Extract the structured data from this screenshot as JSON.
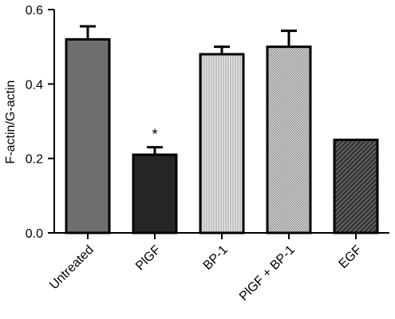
{
  "chart_data": {
    "type": "bar",
    "categories": [
      "Untreated",
      "PlGF",
      "BP-1",
      "PlGF + BP-1",
      "EGF"
    ],
    "values": [
      0.52,
      0.21,
      0.48,
      0.5,
      0.25
    ],
    "error_upper": [
      0.555,
      0.23,
      0.5,
      0.543,
      0.25
    ],
    "ylabel": "F-actin/G-actin",
    "xlabel": "",
    "ylim": [
      0,
      0.6
    ],
    "yticks": [
      0.0,
      0.2,
      0.4,
      0.6
    ],
    "ytick_labels": [
      "0.0",
      "0.2",
      "0.4",
      "0.6"
    ],
    "annotations": [
      {
        "category": "PlGF",
        "text": "*"
      }
    ],
    "grid": false,
    "bar_fills": [
      "#6e6e6e",
      "#262626",
      "#d8d8d8",
      "#c8c8c8",
      "#3a3a3a"
    ],
    "bar_patterns": [
      "solid",
      "solid",
      "vertical-lines",
      "dots",
      "diagonal-lines"
    ]
  }
}
